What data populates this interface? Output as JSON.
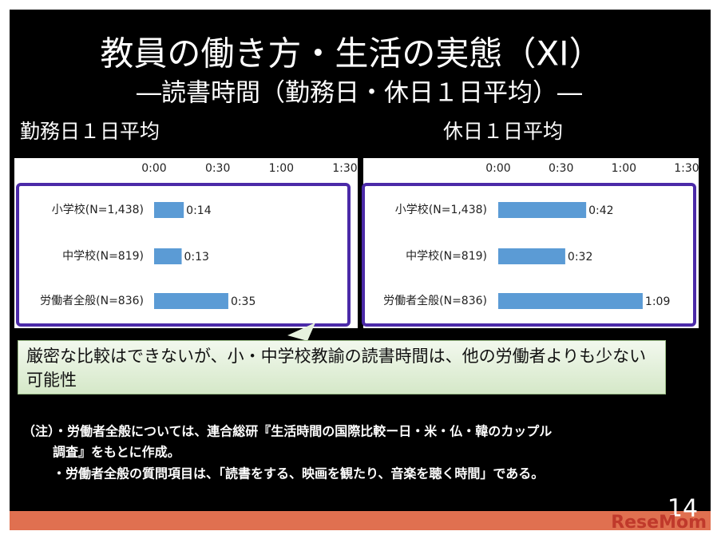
{
  "title": "教員の働き方・生活の実態（XI）",
  "subtitle": "―読書時間（勤務日・休日１日平均）―",
  "chart_data": [
    {
      "type": "bar",
      "orientation": "horizontal",
      "title": "勤務日１日平均",
      "categories": [
        "小学校(N=1,438)",
        "中学校(N=819)",
        "労働者全般(N=836)"
      ],
      "values": [
        14,
        13,
        35
      ],
      "value_labels": [
        "0:14",
        "0:13",
        "0:35"
      ],
      "color": "#5b9bd5",
      "xlim": [
        0,
        90
      ],
      "xticks": [
        {
          "value": 0,
          "label": "0:00"
        },
        {
          "value": 30,
          "label": "0:30"
        },
        {
          "value": 60,
          "label": "1:00"
        },
        {
          "value": 90,
          "label": "1:30"
        }
      ]
    },
    {
      "type": "bar",
      "orientation": "horizontal",
      "title": "休日１日平均",
      "categories": [
        "小学校(N=1,438)",
        "中学校(N=819)",
        "労働者全般(N=836)"
      ],
      "values": [
        42,
        32,
        69
      ],
      "value_labels": [
        "0:42",
        "0:32",
        "1:09"
      ],
      "color": "#5b9bd5",
      "xlim": [
        0,
        90
      ],
      "xticks": [
        {
          "value": 0,
          "label": "0:00"
        },
        {
          "value": 30,
          "label": "0:30"
        },
        {
          "value": 60,
          "label": "1:00"
        },
        {
          "value": 90,
          "label": "1:30"
        }
      ]
    }
  ],
  "callout": "厳密な比較はできないが、小・中学校教諭の読書時間は、他の労働者よりも少ない可能性",
  "notes": [
    "（注）・労働者全般については、連合総研『生活時間の国際比較ー日・米・仏・韓のカップル",
    "調査』をもとに作成。",
    "・労働者全般の質問項目は、「読書をする、映画を観たり、音楽を聴く時間」である。"
  ],
  "page_number": "14",
  "watermark": "ReseMom"
}
